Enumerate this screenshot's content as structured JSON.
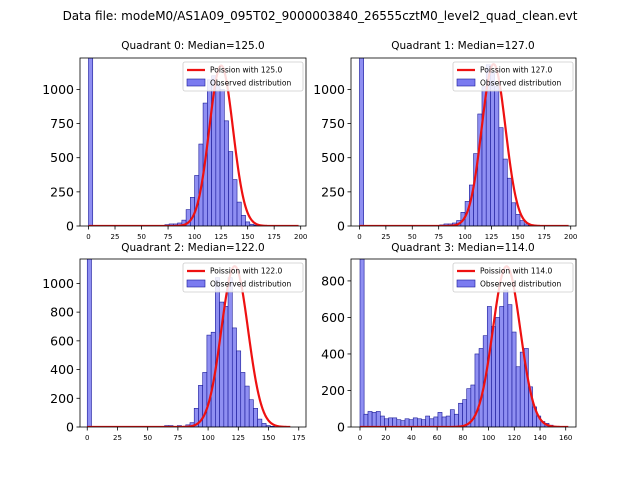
{
  "figure": {
    "suptitle": "Data file: modeM0/AS1A09_095T02_9000003840_26555cztM0_level2_quad_clean.evt"
  },
  "colors": {
    "bar_fill": "#7b7bf0",
    "bar_edge": "#1a1a99",
    "curve": "#ee1111"
  },
  "chart_data": [
    {
      "type": "bar+line",
      "title": "Quadrant 0: Median=125.0",
      "median": 125.0,
      "xlim": [
        -8,
        205
      ],
      "ylim": [
        0,
        1230
      ],
      "xticks": [
        0,
        25,
        50,
        75,
        100,
        125,
        150,
        175,
        200
      ],
      "yticks": [
        0,
        250,
        500,
        750,
        1000
      ],
      "binwidth": 4,
      "spike": {
        "x": 0,
        "height": 1230
      },
      "bins": {
        "start": 68,
        "values": [
          3,
          10,
          15,
          15,
          22,
          43,
          120,
          210,
          370,
          600,
          900,
          1070,
          1100,
          1040,
          1000,
          770,
          545,
          340,
          175,
          78,
          30,
          13,
          6,
          3
        ]
      },
      "legend": {
        "line_label": "Poission with 125.0",
        "bar_label": "Observed distribution",
        "loc": "upper-right"
      },
      "curve": {
        "mu": 125.0,
        "peak": 1175,
        "x_range": [
          0,
          198
        ]
      }
    },
    {
      "type": "bar+line",
      "title": "Quadrant 1: Median=127.0",
      "median": 127.0,
      "xlim": [
        -8,
        205
      ],
      "ylim": [
        0,
        1230
      ],
      "xticks": [
        0,
        25,
        50,
        75,
        100,
        125,
        150,
        175,
        200
      ],
      "yticks": [
        0,
        250,
        500,
        750,
        1000
      ],
      "binwidth": 4,
      "spike": {
        "x": 0,
        "height": 1230
      },
      "bins": {
        "start": 72,
        "values": [
          3,
          8,
          15,
          15,
          22,
          40,
          100,
          180,
          300,
          530,
          820,
          1020,
          1180,
          1130,
          1020,
          720,
          490,
          350,
          170,
          85,
          40,
          15,
          6,
          3
        ]
      },
      "legend": {
        "line_label": "Poission with 127.0",
        "bar_label": "Observed distribution",
        "loc": "upper-right"
      },
      "curve": {
        "mu": 127.0,
        "peak": 1185,
        "x_range": [
          0,
          198
        ]
      }
    },
    {
      "type": "bar+line",
      "title": "Quadrant 2: Median=122.0",
      "median": 122.0,
      "xlim": [
        -6,
        181
      ],
      "ylim": [
        0,
        1170
      ],
      "xticks": [
        0,
        25,
        50,
        75,
        100,
        125,
        150,
        175
      ],
      "yticks": [
        0,
        200,
        400,
        600,
        800,
        1000
      ],
      "binwidth": 3.5,
      "spike": {
        "x": 0,
        "height": 1170
      },
      "bins": {
        "start": 64,
        "values": [
          10,
          10,
          5,
          10,
          5,
          15,
          30,
          130,
          290,
          380,
          640,
          660,
          1040,
          870,
          840,
          1040,
          690,
          530,
          380,
          285,
          190,
          130,
          55,
          25,
          10,
          5
        ]
      },
      "legend": {
        "line_label": "Poission with 122.0",
        "bar_label": "Observed distribution",
        "loc": "upper-right"
      },
      "curve": {
        "mu": 122.0,
        "peak": 1120,
        "x_range": [
          0,
          168
        ]
      }
    },
    {
      "type": "bar+line",
      "title": "Quadrant 3: Median=114.0",
      "median": 114.0,
      "xlim": [
        -7,
        168
      ],
      "ylim": [
        0,
        920
      ],
      "xticks": [
        0,
        20,
        40,
        60,
        80,
        100,
        120,
        140,
        160
      ],
      "yticks": [
        0,
        200,
        400,
        600,
        800
      ],
      "binwidth": 3.2,
      "spike": {
        "x": 0,
        "height": 920
      },
      "bins": {
        "start": 3.0,
        "values": [
          70,
          85,
          80,
          85,
          60,
          45,
          50,
          50,
          40,
          35,
          45,
          40,
          50,
          45,
          40,
          60,
          45,
          55,
          80,
          55,
          60,
          95,
          70,
          130,
          150,
          210,
          230,
          400,
          430,
          500,
          660,
          550,
          600,
          660,
          750,
          670,
          520,
          330,
          410,
          430,
          220,
          110,
          60,
          30,
          20,
          10
        ]
      },
      "legend": {
        "line_label": "Poission with 114.0",
        "bar_label": "Observed distribution",
        "loc": "upper-right"
      },
      "curve": {
        "mu": 114.0,
        "peak": 880,
        "x_range": [
          0,
          162
        ]
      }
    }
  ]
}
